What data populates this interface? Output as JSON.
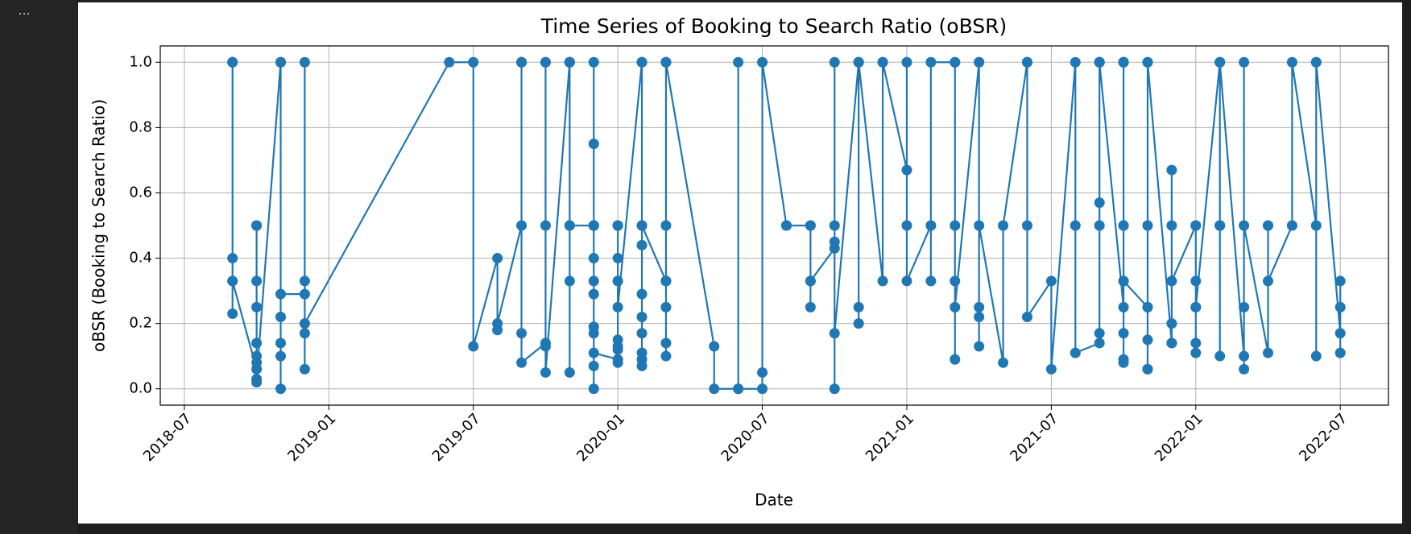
{
  "toolbar": {
    "menu": "···"
  },
  "chart_data": {
    "type": "line",
    "title": "Time Series of Booking to Search Ratio (oBSR)",
    "x_label": "Date",
    "y_label": "oBSR (Booking to Search Ratio)",
    "color": "#1f77b4",
    "grid": true,
    "markers": true,
    "xlim": [
      "2018-06",
      "2022-09"
    ],
    "xticks": [
      "2018-07",
      "2019-01",
      "2019-07",
      "2020-01",
      "2020-07",
      "2021-01",
      "2021-07",
      "2022-01",
      "2022-07"
    ],
    "ylim": [
      -0.05,
      1.05
    ],
    "yticks": [
      {
        "value": 0,
        "label": "0.0"
      },
      0.2,
      0.4,
      0.6,
      0.8,
      {
        "value": 1,
        "label": "1.0"
      }
    ],
    "x": [
      "2018-09",
      "2018-09",
      "2018-09",
      "2018-09",
      "2018-09",
      "2018-09",
      "2018-09",
      "2018-10",
      "2018-10",
      "2018-10",
      "2018-10",
      "2018-10",
      "2018-10",
      "2018-10",
      "2018-10",
      "2018-10",
      "2018-10",
      "2018-10",
      "2018-11",
      "2018-11",
      "2018-11",
      "2018-11",
      "2018-11",
      "2018-11",
      "2018-11",
      "2018-11",
      "2018-12",
      "2018-12",
      "2018-12",
      "2018-12",
      "2018-12",
      "2018-12",
      "2019-06",
      "2019-07",
      "2019-07",
      "2019-08",
      "2019-08",
      "2019-08",
      "2019-09",
      "2019-09",
      "2019-09",
      "2019-09",
      "2019-09",
      "2019-09",
      "2019-10",
      "2019-10",
      "2019-10",
      "2019-10",
      "2019-10",
      "2019-10",
      "2019-11",
      "2019-11",
      "2019-11",
      "2019-11",
      "2019-11",
      "2019-11",
      "2019-11",
      "2019-11",
      "2019-12",
      "2019-12",
      "2019-12",
      "2019-12",
      "2019-12",
      "2019-12",
      "2019-12",
      "2019-12",
      "2019-12",
      "2019-12",
      "2019-12",
      "2019-12",
      "2019-12",
      "2019-12",
      "2020-01",
      "2020-01",
      "2020-01",
      "2020-01",
      "2020-01",
      "2020-01",
      "2020-01",
      "2020-01",
      "2020-01",
      "2020-01",
      "2020-01",
      "2020-01",
      "2020-01",
      "2020-02",
      "2020-02",
      "2020-02",
      "2020-02",
      "2020-02",
      "2020-02",
      "2020-02",
      "2020-02",
      "2020-02",
      "2020-02",
      "2020-02",
      "2020-02",
      "2020-03",
      "2020-03",
      "2020-03",
      "2020-03",
      "2020-03",
      "2020-03",
      "2020-03",
      "2020-03",
      "2020-03",
      "2020-03",
      "2020-05",
      "2020-05",
      "2020-06",
      "2020-06",
      "2020-06",
      "2020-07",
      "2020-07",
      "2020-07",
      "2020-08",
      "2020-08",
      "2020-08",
      "2020-09",
      "2020-09",
      "2020-09",
      "2020-09",
      "2020-09",
      "2020-10",
      "2020-10",
      "2020-10",
      "2020-10",
      "2020-10",
      "2020-10",
      "2020-11",
      "2020-11",
      "2020-11",
      "2020-11",
      "2020-11",
      "2020-12",
      "2020-12",
      "2020-12",
      "2021-01",
      "2021-01",
      "2021-01",
      "2021-01",
      "2021-02",
      "2021-02",
      "2021-02",
      "2021-03",
      "2021-03",
      "2021-03",
      "2021-03",
      "2021-03",
      "2021-03",
      "2021-04",
      "2021-04",
      "2021-04",
      "2021-04",
      "2021-04",
      "2021-04",
      "2021-05",
      "2021-05",
      "2021-06",
      "2021-06",
      "2021-06",
      "2021-06",
      "2021-06",
      "2021-07",
      "2021-07",
      "2021-08",
      "2021-08",
      "2021-08",
      "2021-09",
      "2021-09",
      "2021-09",
      "2021-09",
      "2021-09",
      "2021-09",
      "2021-09",
      "2021-09",
      "2021-10",
      "2021-10",
      "2021-10",
      "2021-10",
      "2021-10",
      "2021-10",
      "2021-10",
      "2021-10",
      "2021-10",
      "2021-10",
      "2021-10",
      "2021-10",
      "2021-10",
      "2021-11",
      "2021-11",
      "2021-11",
      "2021-11",
      "2021-11",
      "2021-11",
      "2021-11",
      "2021-11",
      "2021-12",
      "2021-12",
      "2021-12",
      "2021-12",
      "2021-12",
      "2021-12",
      "2022-01",
      "2022-01",
      "2022-01",
      "2022-01",
      "2022-01",
      "2022-01",
      "2022-01",
      "2022-02",
      "2022-02",
      "2022-02",
      "2022-02",
      "2022-02",
      "2022-02",
      "2022-02",
      "2022-03",
      "2022-03",
      "2022-03",
      "2022-03",
      "2022-03",
      "2022-04",
      "2022-04",
      "2022-04",
      "2022-04",
      "2022-05",
      "2022-05",
      "2022-06",
      "2022-06",
      "2022-06",
      "2022-06",
      "2022-07",
      "2022-07",
      "2022-07",
      "2022-07"
    ],
    "values": [
      0.33,
      1.0,
      1.0,
      0.4,
      0.23,
      1.0,
      0.33,
      0.06,
      0.1,
      0.33,
      0.02,
      0.5,
      0.25,
      0.5,
      0.14,
      0.5,
      0.08,
      0.03,
      1.0,
      0.14,
      0.0,
      1.0,
      0.22,
      1.0,
      0.1,
      0.29,
      0.29,
      0.17,
      1.0,
      0.33,
      0.06,
      0.2,
      1.0,
      1.0,
      0.13,
      0.4,
      0.18,
      0.2,
      0.5,
      1.0,
      0.17,
      1.0,
      1.0,
      0.08,
      0.14,
      1.0,
      0.13,
      1.0,
      0.5,
      0.05,
      1.0,
      0.5,
      1.0,
      0.33,
      0.05,
      1.0,
      1.0,
      0.5,
      0.5,
      0.29,
      0.17,
      0.19,
      0.5,
      0.07,
      0.75,
      0.33,
      0.5,
      0.4,
      0.0,
      0.5,
      1.0,
      0.11,
      0.09,
      0.5,
      0.33,
      0.5,
      0.13,
      0.5,
      0.33,
      0.15,
      0.5,
      0.08,
      0.4,
      0.12,
      0.25,
      1.0,
      0.44,
      0.29,
      1.0,
      0.17,
      0.5,
      0.09,
      0.07,
      0.22,
      1.0,
      0.11,
      0.5,
      0.33,
      0.5,
      1.0,
      0.33,
      1.0,
      0.14,
      0.1,
      0.25,
      0.33,
      1.0,
      0.13,
      0.0,
      0.0,
      1.0,
      0.0,
      0.0,
      0.05,
      1.0,
      0.5,
      0.5,
      0.5,
      0.5,
      0.25,
      0.33,
      0.5,
      0.33,
      0.43,
      1.0,
      0.5,
      0.0,
      0.45,
      0.17,
      1.0,
      0.2,
      0.25,
      1.0,
      1.0,
      0.33,
      1.0,
      1.0,
      0.67,
      1.0,
      0.5,
      0.33,
      0.5,
      0.33,
      1.0,
      1.0,
      0.09,
      1.0,
      0.33,
      0.5,
      0.25,
      1.0,
      0.13,
      0.25,
      1.0,
      0.22,
      0.5,
      0.08,
      0.5,
      1.0,
      1.0,
      0.5,
      1.0,
      0.22,
      0.33,
      0.06,
      1.0,
      0.5,
      0.11,
      0.14,
      0.17,
      1.0,
      0.57,
      1.0,
      0.5,
      1.0,
      1.0,
      0.25,
      0.5,
      1.0,
      0.33,
      1.0,
      0.17,
      0.5,
      1.0,
      0.33,
      0.09,
      1.0,
      0.08,
      0.33,
      0.25,
      0.15,
      0.5,
      0.06,
      0.06,
      0.25,
      1.0,
      1.0,
      0.14,
      0.67,
      0.2,
      0.5,
      0.14,
      0.33,
      0.5,
      0.14,
      0.5,
      0.25,
      0.33,
      0.11,
      0.25,
      1.0,
      0.5,
      1.0,
      0.5,
      0.1,
      0.5,
      1.0,
      0.1,
      1.0,
      0.25,
      0.06,
      0.5,
      0.11,
      0.5,
      0.5,
      0.33,
      0.5,
      1.0,
      0.5,
      0.1,
      1.0,
      1.0,
      0.17,
      0.25,
      0.11,
      0.33
    ]
  }
}
